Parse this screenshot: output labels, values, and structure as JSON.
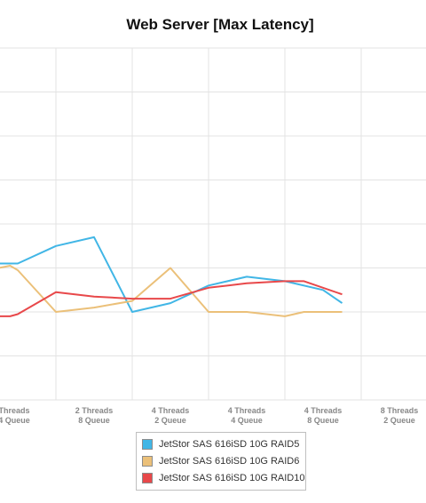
{
  "chart_data": {
    "type": "line",
    "title": "Web Server [Max Latency]",
    "categories": [
      [
        "",
        "4 Queue"
      ],
      [
        "2 Threads",
        "8 Queue"
      ],
      [
        "4 Threads",
        "2 Queue"
      ],
      [
        "4 Threads",
        "4 Queue"
      ],
      [
        "4 Threads",
        "8 Queue"
      ],
      [
        "8 Threads",
        "2 Queue"
      ]
    ],
    "categories_prefix_first": "Threads",
    "grid": true,
    "legend_placement": "bottom-center",
    "series": [
      {
        "name": "JetStor SAS 616iSD 10G RAID5",
        "color": "#41b6e6",
        "points": [
          [
            -0.25,
            31
          ],
          [
            0.0,
            31
          ],
          [
            0.5,
            35
          ],
          [
            1.0,
            37
          ],
          [
            1.5,
            20
          ],
          [
            2.0,
            22
          ],
          [
            2.5,
            26
          ],
          [
            3.0,
            28
          ],
          [
            3.5,
            27
          ],
          [
            4.0,
            25
          ],
          [
            4.25,
            22
          ]
        ]
      },
      {
        "name": "JetStor SAS 616iSD 10G RAID6",
        "color": "#ebc079",
        "points": [
          [
            -0.25,
            30
          ],
          [
            -0.1,
            30.5
          ],
          [
            0.0,
            29.5
          ],
          [
            0.5,
            20
          ],
          [
            1.0,
            21
          ],
          [
            1.5,
            22.5
          ],
          [
            2.0,
            30
          ],
          [
            2.5,
            20
          ],
          [
            3.0,
            20
          ],
          [
            3.5,
            19
          ],
          [
            3.75,
            20
          ],
          [
            4.25,
            20
          ]
        ]
      },
      {
        "name": "JetStor SAS 616iSD 10G RAID10",
        "color": "#e8484a",
        "points": [
          [
            -0.25,
            19
          ],
          [
            -0.1,
            19
          ],
          [
            0.0,
            19.5
          ],
          [
            0.5,
            24.5
          ],
          [
            1.0,
            23.5
          ],
          [
            1.5,
            23
          ],
          [
            2.0,
            23
          ],
          [
            2.5,
            25.5
          ],
          [
            3.0,
            26.5
          ],
          [
            3.5,
            27
          ],
          [
            3.75,
            27
          ],
          [
            4.25,
            24
          ]
        ]
      }
    ]
  }
}
